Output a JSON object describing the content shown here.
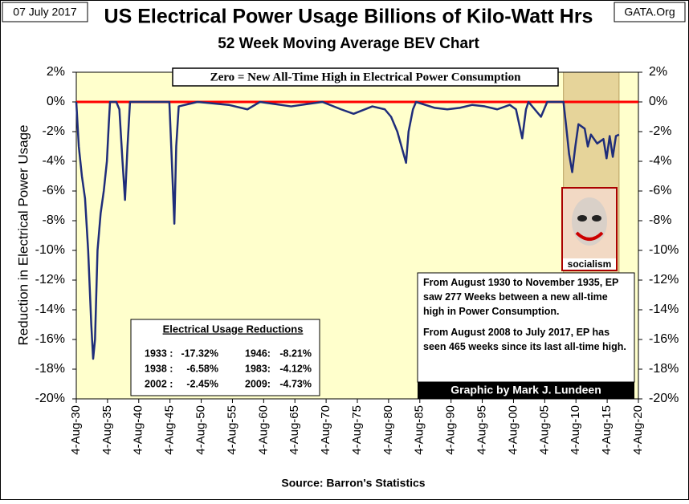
{
  "chart_data": {
    "type": "line",
    "title": "US Electrical Power Usage Billions of Kilo-Watt Hrs",
    "subtitle": "52 Week Moving Average BEV Chart",
    "date_label": "07 July 2017",
    "site_label": "GATA.Org",
    "ylabel": "Reduction in Electrical Power Usage",
    "source": "Source: Barron's Statistics",
    "credit": "Graphic by Mark J. Lundeen",
    "zero_note": "Zero = New All-Time High in Electrical Power Consumption",
    "image_caption": "socialism",
    "reference_line": {
      "value": 0,
      "color": "#ff0000"
    },
    "highlight": {
      "from": 2008.6,
      "to": 2017.5,
      "color": "#e6d49a"
    },
    "note_paragraphs": [
      "From August 1930 to November 1935, EP saw 277 Weeks between a new all-time high in Power Consumption.",
      "From August 2008 to July 2017, EP has seen 465 weeks since its last all-time high."
    ],
    "table": {
      "title": "Electrical Usage Reductions",
      "rows": [
        [
          "1933 :",
          "-17.32%",
          "1946:",
          "-8.21%"
        ],
        [
          "1938 :",
          "-6.58%",
          "1983:",
          "-4.12%"
        ],
        [
          "2002 :",
          "-2.45%",
          "2009:",
          "-4.73%"
        ]
      ]
    },
    "x": [
      1930.6,
      1931,
      1931.5,
      1932,
      1932.5,
      1933,
      1933.3,
      1933.6,
      1934,
      1934.5,
      1935,
      1935.5,
      1935.8,
      1936,
      1937,
      1937.5,
      1938,
      1938.4,
      1938.8,
      1939.2,
      1942,
      1945.5,
      1945.8,
      1946.3,
      1946.6,
      1947,
      1950,
      1955,
      1958,
      1960,
      1965,
      1970,
      1973,
      1975,
      1978,
      1980,
      1981,
      1982,
      1983,
      1983.4,
      1983.8,
      1984.5,
      1985,
      1988,
      1990,
      1992,
      1994,
      1996,
      1998,
      2000,
      2001,
      2002,
      2002.6,
      2003,
      2005,
      2006,
      2008.6,
      2009,
      2009.5,
      2010,
      2010.5,
      2011,
      2012,
      2012.5,
      2013,
      2014,
      2015,
      2015.5,
      2016,
      2016.5,
      2017,
      2017.5
    ],
    "series": [
      {
        "name": "BEV",
        "color": "#1f2d7a",
        "values": [
          0,
          -3,
          -5,
          -6.5,
          -10,
          -15,
          -17.3,
          -16,
          -10,
          -7.5,
          -6,
          -4,
          -1.5,
          0,
          0,
          -0.5,
          -4,
          -6.6,
          -3,
          0,
          0,
          0,
          -3,
          -8.2,
          -3,
          -0.3,
          0,
          -0.2,
          -0.5,
          0,
          -0.3,
          0,
          -0.5,
          -0.8,
          -0.3,
          -0.5,
          -1,
          -2,
          -3.5,
          -4.1,
          -2,
          -0.5,
          0,
          -0.4,
          -0.5,
          -0.4,
          -0.2,
          -0.3,
          -0.5,
          -0.2,
          -0.5,
          -2.45,
          -0.5,
          0,
          -1,
          0,
          0,
          -1.5,
          -3.5,
          -4.73,
          -3,
          -1.5,
          -1.8,
          -3,
          -2.2,
          -2.8,
          -2.5,
          -3.8,
          -2.3,
          -3.7,
          -2.3,
          -2.2
        ]
      }
    ],
    "ylim": [
      -20,
      2
    ],
    "yticks": [
      {
        "value": 2,
        "label": "2%"
      },
      {
        "value": 0,
        "label": "0%"
      },
      {
        "value": -2,
        "label": "-2%"
      },
      {
        "value": -4,
        "label": "-4%"
      },
      {
        "value": -6,
        "label": "-6%"
      },
      {
        "value": -8,
        "label": "-8%"
      },
      {
        "value": -10,
        "label": "-10%"
      },
      {
        "value": -12,
        "label": "-12%"
      },
      {
        "value": -14,
        "label": "-14%"
      },
      {
        "value": -16,
        "label": "-16%"
      },
      {
        "value": -18,
        "label": "-18%"
      },
      {
        "value": -20,
        "label": "-20%"
      }
    ],
    "xlim": [
      1930.6,
      2020.6
    ],
    "xticks": [
      {
        "value": 1930.6,
        "label": "4-Aug-30"
      },
      {
        "value": 1935.6,
        "label": "4-Aug-35"
      },
      {
        "value": 1940.6,
        "label": "4-Aug-40"
      },
      {
        "value": 1945.6,
        "label": "4-Aug-45"
      },
      {
        "value": 1950.6,
        "label": "4-Aug-50"
      },
      {
        "value": 1955.6,
        "label": "4-Aug-55"
      },
      {
        "value": 1960.6,
        "label": "4-Aug-60"
      },
      {
        "value": 1965.6,
        "label": "4-Aug-65"
      },
      {
        "value": 1970.6,
        "label": "4-Aug-70"
      },
      {
        "value": 1975.6,
        "label": "4-Aug-75"
      },
      {
        "value": 1980.6,
        "label": "4-Aug-80"
      },
      {
        "value": 1985.6,
        "label": "4-Aug-85"
      },
      {
        "value": 1990.6,
        "label": "4-Aug-90"
      },
      {
        "value": 1995.6,
        "label": "4-Aug-95"
      },
      {
        "value": 2000.6,
        "label": "4-Aug-00"
      },
      {
        "value": 2005.6,
        "label": "4-Aug-05"
      },
      {
        "value": 2010.6,
        "label": "4-Aug-10"
      },
      {
        "value": 2015.6,
        "label": "4-Aug-15"
      },
      {
        "value": 2020.6,
        "label": "4-Aug-20"
      }
    ],
    "grid": false
  }
}
